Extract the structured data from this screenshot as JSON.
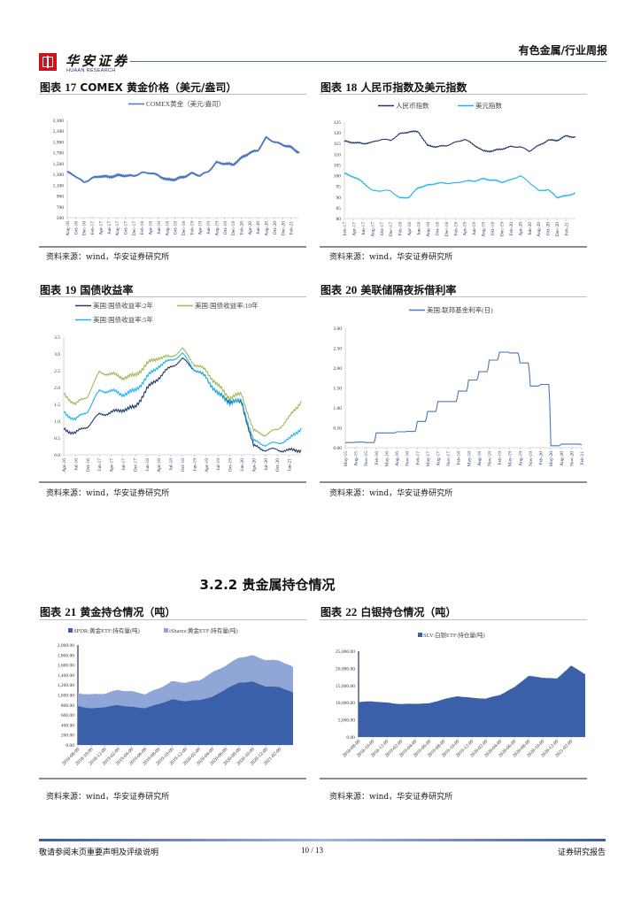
{
  "header": {
    "logo_cn": "华安证券",
    "logo_en": "HUAAN RESEARCH",
    "title": "有色金属/行业周报"
  },
  "section_heading": "3.2.2 贵金属持仓情况",
  "figures": [
    {
      "title_prefix": "图表",
      "num": "17",
      "title": "COMEX 黄金价格（美元/盎司）",
      "source": "资料来源：wind，华安证券研究所"
    },
    {
      "title_prefix": "图表",
      "num": "18",
      "title": "人民币指数及美元指数",
      "source": "资料来源：wind，华安证券研究所"
    },
    {
      "title_prefix": "图表",
      "num": "19",
      "title": "国债收益率",
      "source": "资料来源：wind，华安证券研究所"
    },
    {
      "title_prefix": "图表",
      "num": "20",
      "title": "美联储隔夜拆借利率",
      "source": "资料来源：wind，华安证券研究所"
    },
    {
      "title_prefix": "图表",
      "num": "21",
      "title": "黄金持仓情况（吨）",
      "source": "资料来源：wind，华安证券研究所"
    },
    {
      "title_prefix": "图表",
      "num": "22",
      "title": "白银持仓情况（吨）",
      "source": "资料来源：wind，华安证券研究所"
    }
  ],
  "chart_data": [
    {
      "type": "line",
      "ylim": [
        500,
        2300
      ],
      "yticks": [
        "500",
        "700",
        "900",
        "1,100",
        "1,300",
        "1,500",
        "1,700",
        "1,900",
        "2,100",
        "2,300"
      ],
      "xticks": [
        "Aug-16",
        "Oct-16",
        "Dec-16",
        "Feb-17",
        "Apr-17",
        "Jun-17",
        "Aug-17",
        "Oct-17",
        "Dec-17",
        "Feb-18",
        "Apr-18",
        "Jun-18",
        "Aug-18",
        "Oct-18",
        "Dec-18",
        "Feb-19",
        "Apr-19",
        "Jun-19",
        "Aug-19",
        "Oct-19",
        "Dec-19",
        "Feb-20",
        "Apr-20",
        "Jun-20",
        "Aug-20",
        "Oct-20",
        "Dec-20",
        "Feb-21"
      ],
      "legend": "top",
      "series": [
        {
          "name": "COMEX黄金（美元/盎司）",
          "color": "#4a76c0",
          "values": [
            1340,
            1270,
            1150,
            1230,
            1270,
            1250,
            1280,
            1280,
            1270,
            1330,
            1330,
            1280,
            1200,
            1210,
            1250,
            1320,
            1280,
            1350,
            1520,
            1500,
            1480,
            1600,
            1700,
            1740,
            1980,
            1900,
            1850,
            1800,
            1700
          ]
        }
      ]
    },
    {
      "type": "line",
      "ylim": [
        80,
        125
      ],
      "yticks": [
        "80",
        "85",
        "90",
        "95",
        "100",
        "105",
        "110",
        "115",
        "120",
        "125"
      ],
      "xticks": [
        "Feb-17",
        "Apr-17",
        "Jun-17",
        "Aug-17",
        "Oct-17",
        "Dec-17",
        "Feb-18",
        "Apr-18",
        "Jun-18",
        "Aug-18",
        "Oct-18",
        "Dec-18",
        "Feb-19",
        "Apr-19",
        "Jun-19",
        "Aug-19",
        "Oct-19",
        "Dec-19",
        "Feb-20",
        "Apr-20",
        "Jun-20",
        "Aug-20",
        "Oct-20",
        "Dec-20",
        "Feb-21"
      ],
      "legend": "top",
      "series": [
        {
          "name": "人民币指数",
          "color": "#1f3864",
          "values": [
            116,
            115.5,
            115,
            115.5,
            117,
            116.5,
            119.5,
            120.5,
            120.5,
            114,
            113.5,
            114,
            115.5,
            117,
            114.5,
            111.5,
            111.5,
            112.5,
            113.5,
            113.5,
            111.5,
            114,
            116.5,
            116.5,
            118.5,
            118
          ]
        },
        {
          "name": "美元指数",
          "color": "#1fb4f0",
          "values": [
            101,
            99.5,
            97,
            93,
            93,
            93,
            89.5,
            90,
            94.5,
            95.5,
            96.5,
            96.5,
            96.5,
            97.5,
            97.5,
            98.5,
            98,
            97,
            98,
            100,
            97,
            93,
            93.5,
            90,
            90.5,
            92
          ]
        }
      ]
    },
    {
      "type": "line",
      "ylim": [
        0,
        3.5
      ],
      "yticks": [
        "0.0",
        "0.5",
        "1.0",
        "1.5",
        "2.0",
        "2.5",
        "3.0",
        "3.5"
      ],
      "xticks": [
        "Apr-16",
        "Jul-16",
        "Oct-16",
        "Jan-17",
        "Apr-17",
        "Jul-17",
        "Oct-17",
        "Jan-18",
        "Apr-18",
        "Jul-18",
        "Oct-18",
        "Jan-19",
        "Apr-19",
        "Jul-19",
        "Oct-19",
        "Jan-20",
        "Apr-20",
        "Jul-20",
        "Oct-20",
        "Jan-21"
      ],
      "legend": "top",
      "series": [
        {
          "name": "美国:国债收益率:2年",
          "color": "#1f3a6e",
          "values": [
            0.75,
            0.65,
            0.85,
            1.2,
            1.25,
            1.35,
            1.4,
            1.95,
            2.3,
            2.6,
            2.85,
            2.55,
            2.3,
            1.8,
            1.6,
            1.55,
            0.25,
            0.15,
            0.15,
            0.12,
            0.15
          ]
        },
        {
          "name": "美国:国债收益率:10年",
          "color": "#9bbb59",
          "values": [
            1.8,
            1.5,
            1.75,
            2.45,
            2.4,
            2.3,
            2.35,
            2.7,
            2.9,
            2.9,
            3.15,
            2.7,
            2.5,
            2.05,
            1.7,
            1.8,
            0.7,
            0.6,
            0.75,
            1.1,
            1.6
          ]
        },
        {
          "name": "美国:国债收益率:5年",
          "color": "#1fb4f0",
          "values": [
            1.25,
            1.05,
            1.3,
            1.9,
            1.9,
            1.8,
            1.9,
            2.3,
            2.65,
            2.8,
            3.0,
            2.55,
            2.3,
            1.8,
            1.55,
            1.6,
            0.4,
            0.3,
            0.35,
            0.45,
            0.8
          ]
        }
      ]
    },
    {
      "type": "line",
      "step": true,
      "ylim": [
        0,
        3
      ],
      "yticks": [
        "0.00",
        "0.50",
        "1.00",
        "1.50",
        "2.00",
        "2.50",
        "3.00"
      ],
      "xticks": [
        "May-15",
        "Aug-15",
        "Nov-15",
        "Feb-16",
        "May-16",
        "Aug-16",
        "Nov-16",
        "Feb-17",
        "May-17",
        "Aug-17",
        "Nov-17",
        "Feb-18",
        "May-18",
        "Aug-18",
        "Nov-18",
        "Feb-19",
        "May-19",
        "Aug-19",
        "Nov-19",
        "Feb-20",
        "May-20",
        "Aug-20",
        "Nov-20",
        "Feb-21"
      ],
      "legend": "top",
      "series": [
        {
          "name": "美国:联邦基金利率(日)",
          "color": "#4a76c0",
          "values": [
            0.13,
            0.14,
            0.13,
            0.37,
            0.37,
            0.4,
            0.41,
            0.66,
            0.91,
            1.16,
            1.16,
            1.42,
            1.7,
            1.91,
            2.2,
            2.4,
            2.38,
            2.13,
            1.55,
            1.59,
            0.05,
            0.09,
            0.09,
            0.07
          ]
        }
      ]
    },
    {
      "type": "area",
      "stacked": true,
      "ylim": [
        0,
        2000
      ],
      "yticks": [
        "0.00",
        "200.00",
        "400.00",
        "600.00",
        "800.00",
        "1,000.00",
        "1,200.00",
        "1,400.00",
        "1,600.00",
        "1,800.00",
        "2,000.00"
      ],
      "xticks": [
        "2018-08-09",
        "2018-10-09",
        "2018-12-09",
        "2019-02-09",
        "2019-04-09",
        "2019-06-09",
        "2019-08-09",
        "2019-10-09",
        "2019-12-09",
        "2020-02-09",
        "2020-04-09",
        "2020-06-09",
        "2020-08-09",
        "2020-10-09",
        "2020-12-09",
        "2021-02-09"
      ],
      "legend": "top",
      "series": [
        {
          "name": "SPDR:黄金ETF:持有量(吨)",
          "color": "#3b60a9",
          "values": [
            780,
            730,
            760,
            800,
            760,
            740,
            820,
            910,
            880,
            900,
            960,
            1120,
            1250,
            1265,
            1170,
            1160,
            1050
          ]
        },
        {
          "name": "iShares:黄金ETF:持有量(吨)",
          "color": "#8fa6d6",
          "values": [
            260,
            280,
            270,
            300,
            310,
            280,
            310,
            360,
            370,
            390,
            490,
            470,
            500,
            525,
            530,
            530,
            510
          ]
        }
      ]
    },
    {
      "type": "area",
      "ylim": [
        0,
        25000
      ],
      "yticks": [
        "0.00",
        "5,000.00",
        "10,000.00",
        "15,000.00",
        "20,000.00",
        "25,000.00"
      ],
      "xticks": [
        "2018-08-09",
        "2018-10-09",
        "2018-12-09",
        "2019-02-09",
        "2019-04-09",
        "2019-06-09",
        "2019-08-09",
        "2019-10-09",
        "2019-12-09",
        "2020-02-09",
        "2020-04-09",
        "2020-06-09",
        "2020-08-09",
        "2020-10-09",
        "2020-12-09",
        "2021-02-09"
      ],
      "legend": "top",
      "series": [
        {
          "name": "SLV:白银ETF:持仓量(吨)",
          "color": "#3b60a9",
          "values": [
            10200,
            10400,
            10000,
            9600,
            9700,
            9800,
            11000,
            11900,
            11400,
            11200,
            12300,
            14500,
            17800,
            17300,
            17000,
            20800,
            18300
          ]
        }
      ]
    }
  ],
  "footer": {
    "disclaimer": "敬请参阅末页重要声明及评级说明",
    "page": "10 / 13",
    "report_type": "证券研究报告"
  }
}
